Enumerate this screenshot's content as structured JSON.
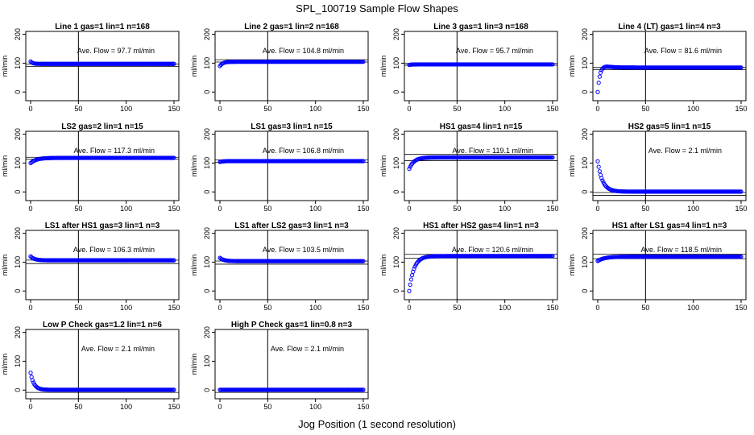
{
  "figure": {
    "title": "SPL_100719  Sample Flow Shapes",
    "xlabel": "Jog Position (1 second resolution)"
  },
  "style": {
    "point_color": "#0000ff",
    "line_color": "#000000"
  },
  "chart_data": [
    {
      "type": "scatter",
      "title": "Line 1 gas=1 lin=1 n=168",
      "annotation": "Ave. Flow = 97.7  ml/min",
      "ylabel": "ml/min",
      "xlim": [
        0,
        150
      ],
      "ylim": [
        -30,
        210
      ],
      "xticks": [
        0,
        50,
        100,
        150
      ],
      "yticks": [
        0,
        100,
        200
      ],
      "vline": 50,
      "hlines": [
        97,
        89
      ],
      "curve": {
        "start": 106,
        "plateau": 97.7,
        "tau": 2,
        "n": 150
      }
    },
    {
      "type": "scatter",
      "title": "Line 2 gas=1 lin=2 n=168",
      "annotation": "Ave. Flow = 104.8  ml/min",
      "ylabel": "ml/min",
      "xlim": [
        0,
        150
      ],
      "ylim": [
        -30,
        210
      ],
      "xticks": [
        0,
        50,
        100,
        150
      ],
      "yticks": [
        0,
        100,
        200
      ],
      "vline": 50,
      "hlines": [
        112,
        104
      ],
      "curve": {
        "start": 90,
        "plateau": 104.8,
        "tau": 3,
        "n": 150
      }
    },
    {
      "type": "scatter",
      "title": "Line 3 gas=1 lin=3 n=168",
      "annotation": "Ave. Flow = 95.7  ml/min",
      "ylabel": "ml/min",
      "xlim": [
        0,
        150
      ],
      "ylim": [
        -30,
        210
      ],
      "xticks": [
        0,
        50,
        100,
        150
      ],
      "yticks": [
        0,
        100,
        200
      ],
      "vline": 50,
      "hlines": [
        99,
        93
      ],
      "curve": {
        "start": 94,
        "plateau": 95.7,
        "tau": 2,
        "n": 150
      }
    },
    {
      "type": "scatter",
      "title": "Line 4 (LT) gas=1 lin=4 n=3",
      "annotation": "Ave. Flow = 81.6  ml/min",
      "ylabel": "ml/min",
      "xlim": [
        0,
        150
      ],
      "ylim": [
        -30,
        210
      ],
      "xticks": [
        0,
        50,
        100,
        150
      ],
      "yticks": [
        0,
        100,
        200
      ],
      "vline": 50,
      "hlines": [
        85,
        77
      ],
      "curve": {
        "start": 0,
        "plateau": 85,
        "tau": 2.5,
        "n": 150,
        "overshoot": 8
      }
    },
    {
      "type": "scatter",
      "title": "LS2 gas=2 lin=1 n=15",
      "annotation": "Ave. Flow = 117.3  ml/min",
      "ylabel": "ml/min",
      "xlim": [
        0,
        150
      ],
      "ylim": [
        -30,
        210
      ],
      "xticks": [
        0,
        50,
        100,
        150
      ],
      "yticks": [
        0,
        100,
        200
      ],
      "vline": 50,
      "hlines": [
        120,
        114
      ],
      "curve": {
        "start": 100,
        "plateau": 118,
        "tau": 6,
        "n": 150
      }
    },
    {
      "type": "scatter",
      "title": "LS1 gas=3 lin=1 n=15",
      "annotation": "Ave. Flow = 106.8  ml/min",
      "ylabel": "ml/min",
      "xlim": [
        0,
        150
      ],
      "ylim": [
        -30,
        210
      ],
      "xticks": [
        0,
        50,
        100,
        150
      ],
      "yticks": [
        0,
        100,
        200
      ],
      "vline": 50,
      "hlines": [
        111,
        103
      ],
      "curve": {
        "start": 104,
        "plateau": 106.8,
        "tau": 3,
        "n": 150
      }
    },
    {
      "type": "scatter",
      "title": "HS1 gas=4 lin=1 n=15",
      "annotation": "Ave. Flow = 119.1  ml/min",
      "ylabel": "ml/min",
      "xlim": [
        0,
        150
      ],
      "ylim": [
        -30,
        210
      ],
      "xticks": [
        0,
        50,
        100,
        150
      ],
      "yticks": [
        0,
        100,
        200
      ],
      "vline": 50,
      "hlines": [
        130,
        108
      ],
      "curve": {
        "start": 80,
        "plateau": 119.5,
        "tau": 5,
        "n": 150
      }
    },
    {
      "type": "scatter",
      "title": "HS2 gas=5 lin=1 n=15",
      "annotation": "Ave. Flow = 2.1  ml/min",
      "ylabel": "ml/min",
      "xlim": [
        0,
        150
      ],
      "ylim": [
        -30,
        210
      ],
      "xticks": [
        0,
        50,
        100,
        150
      ],
      "yticks": [
        0,
        100,
        200
      ],
      "vline": 50,
      "hlines": [
        -2,
        -12
      ],
      "curve": {
        "start": 106,
        "plateau": 1,
        "tau": 5,
        "n": 150
      }
    },
    {
      "type": "scatter",
      "title": "LS1 after HS1 gas=3 lin=1 n=3",
      "annotation": "Ave. Flow = 106.3  ml/min",
      "ylabel": "ml/min",
      "xlim": [
        0,
        150
      ],
      "ylim": [
        -30,
        210
      ],
      "xticks": [
        0,
        50,
        100,
        150
      ],
      "yticks": [
        0,
        100,
        200
      ],
      "vline": 50,
      "hlines": [
        107,
        95
      ],
      "curve": {
        "start": 120,
        "plateau": 106.3,
        "tau": 4,
        "n": 150
      }
    },
    {
      "type": "scatter",
      "title": "LS1 after LS2 gas=3 lin=1 n=3",
      "annotation": "Ave. Flow = 103.5  ml/min",
      "ylabel": "ml/min",
      "xlim": [
        0,
        150
      ],
      "ylim": [
        -30,
        210
      ],
      "xticks": [
        0,
        50,
        100,
        150
      ],
      "yticks": [
        0,
        100,
        200
      ],
      "vline": 50,
      "hlines": [
        104,
        93
      ],
      "curve": {
        "start": 115,
        "plateau": 103.5,
        "tau": 4,
        "n": 150
      }
    },
    {
      "type": "scatter",
      "title": "HS1 after HS2 gas=4 lin=1 n=3",
      "annotation": "Ave. Flow = 120.6  ml/min",
      "ylabel": "ml/min",
      "xlim": [
        0,
        150
      ],
      "ylim": [
        -30,
        210
      ],
      "xticks": [
        0,
        50,
        100,
        150
      ],
      "yticks": [
        0,
        100,
        200
      ],
      "vline": 50,
      "hlines": [
        127,
        114
      ],
      "curve": {
        "start": 0,
        "plateau": 121,
        "tau": 5,
        "n": 150
      }
    },
    {
      "type": "scatter",
      "title": "HS1 after LS1 gas=4 lin=1 n=3",
      "annotation": "Ave. Flow = 118.5  ml/min",
      "ylabel": "ml/min",
      "xlim": [
        0,
        150
      ],
      "ylim": [
        -30,
        210
      ],
      "xticks": [
        0,
        50,
        100,
        150
      ],
      "yticks": [
        0,
        100,
        200
      ],
      "vline": 50,
      "hlines": [
        128,
        112
      ],
      "curve": {
        "start": 104,
        "plateau": 119,
        "tau": 7,
        "n": 150
      }
    },
    {
      "type": "scatter",
      "title": "Low P Check gas=1.2 lin=1 n=6",
      "annotation": "Ave. Flow = 2.1  ml/min",
      "ylabel": "ml/min",
      "xlim": [
        0,
        150
      ],
      "ylim": [
        -30,
        210
      ],
      "xticks": [
        0,
        50,
        100,
        150
      ],
      "yticks": [
        0,
        100,
        200
      ],
      "vline": 50,
      "hlines": [
        -8
      ],
      "curve": {
        "start": 60,
        "plateau": 1,
        "tau": 3.5,
        "n": 150
      }
    },
    {
      "type": "scatter",
      "title": "High P Check gas=1 lin=0.8 n=3",
      "annotation": "Ave. Flow = 2.1  ml/min",
      "ylabel": "ml/min",
      "xlim": [
        0,
        150
      ],
      "ylim": [
        -30,
        210
      ],
      "xticks": [
        0,
        50,
        100,
        150
      ],
      "yticks": [
        0,
        100,
        200
      ],
      "vline": 50,
      "hlines": [
        -8
      ],
      "curve": {
        "start": 1,
        "plateau": 1,
        "tau": 1,
        "n": 150
      }
    }
  ]
}
